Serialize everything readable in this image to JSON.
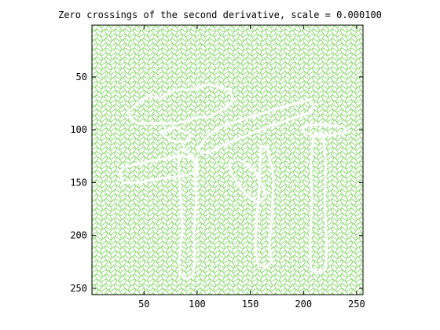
{
  "window": {
    "background": "#ffffff"
  },
  "chart_data": {
    "type": "heatmap",
    "title": "Zero crossings of the second derivative, scale = 0.000100",
    "xlabel": "",
    "ylabel": "",
    "xlim": [
      1,
      256
    ],
    "ylim": [
      1,
      256
    ],
    "y_reversed": true,
    "xticks": [
      50,
      100,
      150,
      200,
      250
    ],
    "yticks": [
      50,
      100,
      150,
      200,
      250
    ],
    "grid": false,
    "colors": {
      "background": "#ffffff",
      "edge": "#99dd80",
      "object_edge": "#ffffff",
      "axis": "#000000"
    },
    "object_outlines": [
      [
        [
          35,
          83
        ],
        [
          45,
          74
        ],
        [
          55,
          68
        ],
        [
          65,
          70
        ],
        [
          80,
          62
        ],
        [
          95,
          62
        ],
        [
          110,
          57
        ],
        [
          130,
          62
        ],
        [
          135,
          72
        ],
        [
          125,
          80
        ],
        [
          115,
          86
        ],
        [
          110,
          88
        ],
        [
          100,
          88
        ],
        [
          90,
          92
        ],
        [
          80,
          94
        ],
        [
          70,
          94
        ],
        [
          55,
          94
        ],
        [
          45,
          94
        ],
        [
          38,
          90
        ],
        [
          35,
          83
        ]
      ],
      [
        [
          100,
          120
        ],
        [
          110,
          105
        ],
        [
          125,
          96
        ],
        [
          150,
          88
        ],
        [
          175,
          80
        ],
        [
          190,
          76
        ],
        [
          205,
          72
        ],
        [
          210,
          78
        ],
        [
          205,
          84
        ],
        [
          188,
          90
        ],
        [
          170,
          96
        ],
        [
          150,
          104
        ],
        [
          130,
          112
        ],
        [
          110,
          122
        ],
        [
          100,
          120
        ]
      ],
      [
        [
          30,
          136
        ],
        [
          45,
          132
        ],
        [
          65,
          128
        ],
        [
          85,
          125
        ],
        [
          100,
          128
        ],
        [
          100,
          140
        ],
        [
          85,
          144
        ],
        [
          65,
          146
        ],
        [
          45,
          150
        ],
        [
          30,
          150
        ],
        [
          27,
          142
        ],
        [
          30,
          136
        ]
      ],
      [
        [
          82,
          120
        ],
        [
          88,
          118
        ],
        [
          98,
          130
        ],
        [
          99,
          170
        ],
        [
          97,
          196
        ],
        [
          98,
          225
        ],
        [
          96,
          237
        ],
        [
          90,
          241
        ],
        [
          84,
          237
        ],
        [
          83,
          225
        ],
        [
          86,
          196
        ],
        [
          85,
          170
        ],
        [
          83,
          140
        ],
        [
          82,
          120
        ]
      ],
      [
        [
          160,
          115
        ],
        [
          166,
          117
        ],
        [
          172,
          145
        ],
        [
          170,
          185
        ],
        [
          168,
          208
        ],
        [
          170,
          225
        ],
        [
          164,
          230
        ],
        [
          157,
          227
        ],
        [
          155,
          210
        ],
        [
          156,
          185
        ],
        [
          159,
          145
        ],
        [
          160,
          115
        ]
      ],
      [
        [
          210,
          104
        ],
        [
          218,
          104
        ],
        [
          221,
          130
        ],
        [
          220,
          170
        ],
        [
          222,
          210
        ],
        [
          221,
          232
        ],
        [
          214,
          235
        ],
        [
          207,
          232
        ],
        [
          206,
          210
        ],
        [
          208,
          170
        ],
        [
          207,
          130
        ],
        [
          210,
          104
        ]
      ],
      [
        [
          200,
          96
        ],
        [
          215,
          95
        ],
        [
          238,
          97
        ],
        [
          240,
          103
        ],
        [
          225,
          105
        ],
        [
          210,
          106
        ],
        [
          200,
          102
        ],
        [
          200,
          96
        ]
      ],
      [
        [
          130,
          130
        ],
        [
          140,
          128
        ],
        [
          155,
          140
        ],
        [
          165,
          162
        ],
        [
          158,
          170
        ],
        [
          145,
          160
        ],
        [
          132,
          142
        ],
        [
          130,
          130
        ]
      ],
      [
        [
          65,
          102
        ],
        [
          80,
          98
        ],
        [
          95,
          105
        ],
        [
          88,
          112
        ],
        [
          75,
          110
        ],
        [
          65,
          102
        ]
      ]
    ]
  }
}
